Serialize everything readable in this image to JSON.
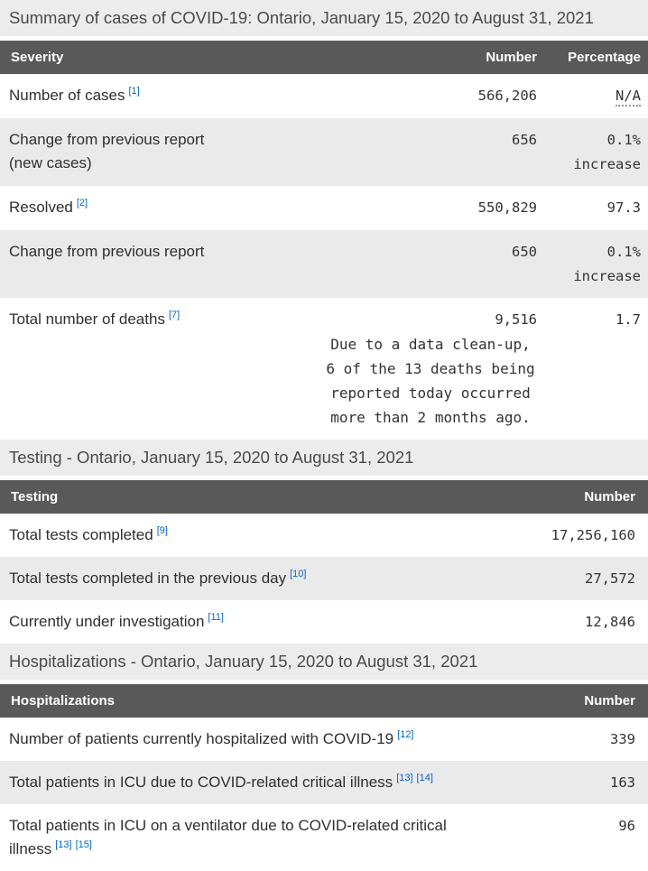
{
  "colors": {
    "header_bg": "#595959",
    "caption_bg": "#ececec",
    "row_alt_bg": "#eaeaea",
    "link": "#0066cc"
  },
  "sections": {
    "severity": {
      "caption": "Summary of cases of COVID-19: Ontario, January 15, 2020 to August 31, 2021",
      "headers": {
        "col1": "Severity",
        "col2": "Number",
        "col3": "Percentage"
      },
      "rows": [
        {
          "label": "Number of cases",
          "ref1": "[1]",
          "number": "566,206",
          "pct": "N/A"
        },
        {
          "label": "Change from previous report",
          "label2": "(new cases)",
          "number": "656",
          "pct": "0.1%",
          "pct2": "increase"
        },
        {
          "label": "Resolved",
          "ref1": "[2]",
          "number": "550,829",
          "pct": "97.3"
        },
        {
          "label": "Change from previous report",
          "number": "650",
          "pct": "0.1%",
          "pct2": "increase"
        },
        {
          "label": "Total number of deaths",
          "ref1": "[7]",
          "number": "9,516",
          "note": "Due to a data clean-up, 6 of the 13 deaths being reported today occurred more than 2 months ago.",
          "pct": "1.7"
        }
      ]
    },
    "testing": {
      "caption": "Testing - Ontario, January 15, 2020 to August 31, 2021",
      "headers": {
        "col1": "Testing",
        "col2": "Number"
      },
      "rows": [
        {
          "label": "Total tests completed",
          "ref1": "[9]",
          "number": "17,256,160"
        },
        {
          "label": "Total tests completed in the previous day",
          "ref1": "[10]",
          "number": "27,572"
        },
        {
          "label": "Currently under investigation",
          "ref1": "[11]",
          "number": "12,846"
        }
      ]
    },
    "hospitalizations": {
      "caption": "Hospitalizations - Ontario, January 15, 2020 to August 31, 2021",
      "headers": {
        "col1": "Hospitalizations",
        "col2": "Number"
      },
      "rows": [
        {
          "label": "Number of patients currently hospitalized with COVID-19",
          "ref1": "[12]",
          "number": "339"
        },
        {
          "label": "Total patients in ICU due to COVID-related critical illness",
          "ref1": "[13]",
          "ref2": "[14]",
          "number": "163"
        },
        {
          "label": "Total patients in ICU on a ventilator due to COVID-related critical illness",
          "ref1": "[13]",
          "ref2": "[15]",
          "number": "96"
        }
      ]
    }
  }
}
